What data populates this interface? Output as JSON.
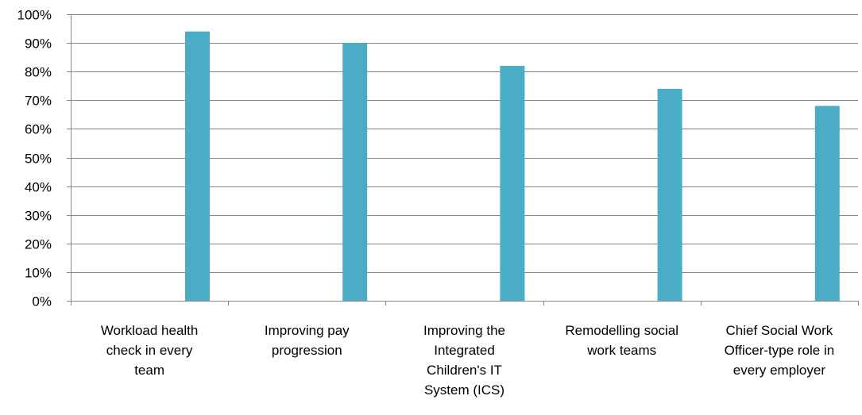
{
  "chart_data": {
    "type": "bar",
    "categories": [
      "Workload health check in every team",
      "Improving pay progression",
      "Improving the Integrated Children's IT System (ICS)",
      "Remodelling social work teams",
      "Chief Social Work Officer-type role in every employer"
    ],
    "category_label_lines": [
      [
        "Workload health",
        "check in every",
        "team"
      ],
      [
        "Improving pay",
        "progression"
      ],
      [
        "Improving the",
        "Integrated",
        "Children's IT",
        "System (ICS)"
      ],
      [
        "Remodelling social",
        "work teams"
      ],
      [
        "Chief Social Work",
        "Officer-type role in",
        "every employer"
      ]
    ],
    "values": [
      0.94,
      0.9,
      0.82,
      0.74,
      0.68
    ],
    "ylim": [
      0,
      1
    ],
    "yticks": [
      "0%",
      "10%",
      "20%",
      "30%",
      "40%",
      "50%",
      "60%",
      "70%",
      "80%",
      "90%",
      "100%"
    ],
    "title": "",
    "xlabel": "",
    "ylabel": "",
    "grid": true,
    "legend": "none",
    "bar_color": "#4BACC6",
    "grid_color": "#868686"
  }
}
